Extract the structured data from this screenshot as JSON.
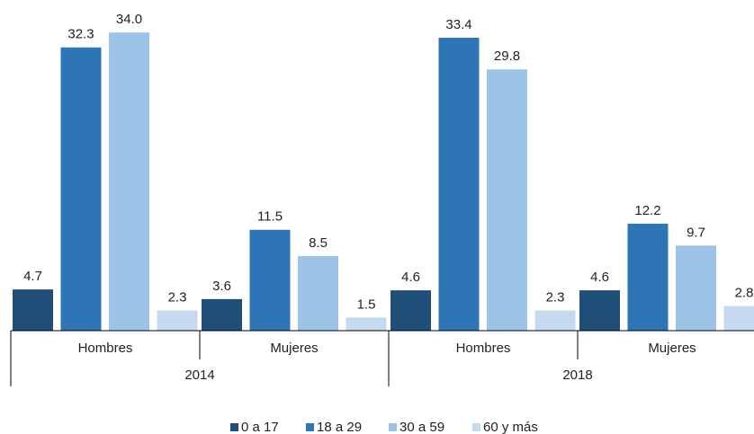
{
  "chart_data": {
    "type": "bar",
    "categories": [
      "Hombres",
      "Mujeres",
      "Hombres",
      "Mujeres"
    ],
    "groups": [
      "2014",
      "2018"
    ],
    "series": [
      {
        "name": "0 a 17",
        "color": "#1f4e79",
        "values": [
          4.7,
          3.6,
          4.6,
          4.6
        ],
        "value_labels": [
          "4.7",
          "3.6",
          "4.6",
          "4.6"
        ]
      },
      {
        "name": "18 a 29",
        "color": "#2e75b6",
        "values": [
          32.3,
          11.5,
          33.4,
          12.2
        ],
        "value_labels": [
          "32.3",
          "11.5",
          "33.4",
          "12.2"
        ]
      },
      {
        "name": "30 a 59",
        "color": "#9dc3e6",
        "values": [
          34.0,
          8.5,
          29.8,
          9.7
        ],
        "value_labels": [
          "34.0",
          "8.5",
          "29.8",
          "9.7"
        ]
      },
      {
        "name": "60 y más",
        "color": "#c5d9f1",
        "values": [
          2.3,
          1.5,
          2.3,
          2.8
        ],
        "value_labels": [
          "2.3",
          "1.5",
          "2.3",
          "2.8"
        ]
      }
    ],
    "legend": "bottom"
  }
}
